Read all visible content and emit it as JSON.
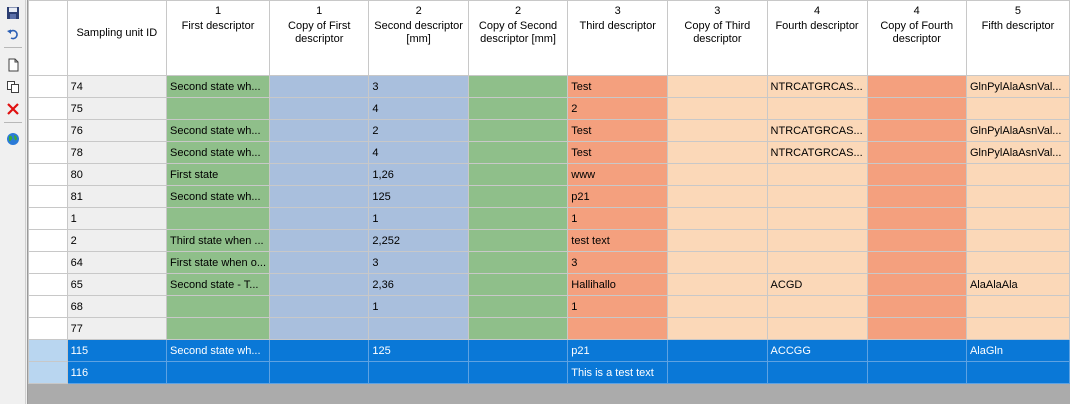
{
  "toolbar": {
    "buttons": [
      {
        "name": "save-icon"
      },
      {
        "name": "undo-icon"
      },
      {
        "name": "new-icon"
      },
      {
        "name": "copy-icon"
      },
      {
        "name": "delete-icon"
      },
      {
        "name": "globe-icon"
      }
    ]
  },
  "columns": [
    {
      "num": "",
      "name": "Sampling unit ID"
    },
    {
      "num": "1",
      "name": "First descriptor"
    },
    {
      "num": "1",
      "name": "Copy of First descriptor"
    },
    {
      "num": "2",
      "name": "Second descriptor [mm]"
    },
    {
      "num": "2",
      "name": "Copy of Second descriptor [mm]"
    },
    {
      "num": "3",
      "name": "Third descriptor"
    },
    {
      "num": "3",
      "name": "Copy of Third descriptor"
    },
    {
      "num": "4",
      "name": "Fourth descriptor"
    },
    {
      "num": "4",
      "name": "Copy of Fourth descriptor"
    },
    {
      "num": "5",
      "name": "Fifth descriptor"
    }
  ],
  "rows": [
    {
      "selected": false,
      "cells": [
        "74",
        "Second state wh...",
        "",
        "3",
        "",
        "Test",
        "",
        "NTRCATGRCAS...",
        "",
        "GlnPylAlaAsnVal..."
      ]
    },
    {
      "selected": false,
      "cells": [
        "75",
        "",
        "",
        "4",
        "",
        "2",
        "",
        "",
        "",
        ""
      ]
    },
    {
      "selected": false,
      "cells": [
        "76",
        "Second state wh...",
        "",
        "2",
        "",
        "Test",
        "",
        "NTRCATGRCAS...",
        "",
        "GlnPylAlaAsnVal..."
      ]
    },
    {
      "selected": false,
      "cells": [
        "78",
        "Second state wh...",
        "",
        "4",
        "",
        "Test",
        "",
        "NTRCATGRCAS...",
        "",
        "GlnPylAlaAsnVal..."
      ]
    },
    {
      "selected": false,
      "cells": [
        "80",
        "First state",
        "",
        "1,26",
        "",
        "www",
        "",
        "",
        "",
        ""
      ]
    },
    {
      "selected": false,
      "cells": [
        "81",
        "Second state wh...",
        "",
        "125",
        "",
        "p21",
        "",
        "",
        "",
        ""
      ]
    },
    {
      "selected": false,
      "cells": [
        "1",
        "",
        "",
        "1",
        "",
        "1",
        "",
        "",
        "",
        ""
      ]
    },
    {
      "selected": false,
      "cells": [
        "2",
        "Third state when ...",
        "",
        "2,252",
        "",
        "test text",
        "",
        "",
        "",
        ""
      ]
    },
    {
      "selected": false,
      "cells": [
        "64",
        "First state when o...",
        "",
        "3",
        "",
        "3",
        "",
        "",
        "",
        ""
      ]
    },
    {
      "selected": false,
      "cells": [
        "65",
        "Second state - T...",
        "",
        "2,36",
        "",
        "Hallihallo",
        "",
        "ACGD",
        "",
        "AlaAlaAla"
      ]
    },
    {
      "selected": false,
      "cells": [
        "68",
        "",
        "",
        "1",
        "",
        "1",
        "",
        "",
        "",
        ""
      ]
    },
    {
      "selected": false,
      "cells": [
        "77",
        "",
        "",
        "",
        "",
        "",
        "",
        "",
        "",
        ""
      ]
    },
    {
      "selected": true,
      "cells": [
        "115",
        "Second state wh...",
        "",
        "125",
        "",
        "p21",
        "",
        "ACCGG",
        "",
        "AlaGln"
      ]
    },
    {
      "selected": true,
      "cells": [
        "116",
        "",
        "",
        "",
        "",
        "This is a test text",
        "",
        "",
        "",
        ""
      ]
    }
  ],
  "colors": {
    "green": "#8fbf8a",
    "blue": "#a9bfdd",
    "salmon": "#f4a07e",
    "peach": "#fbd8b8",
    "selection": "#0a78d7"
  }
}
